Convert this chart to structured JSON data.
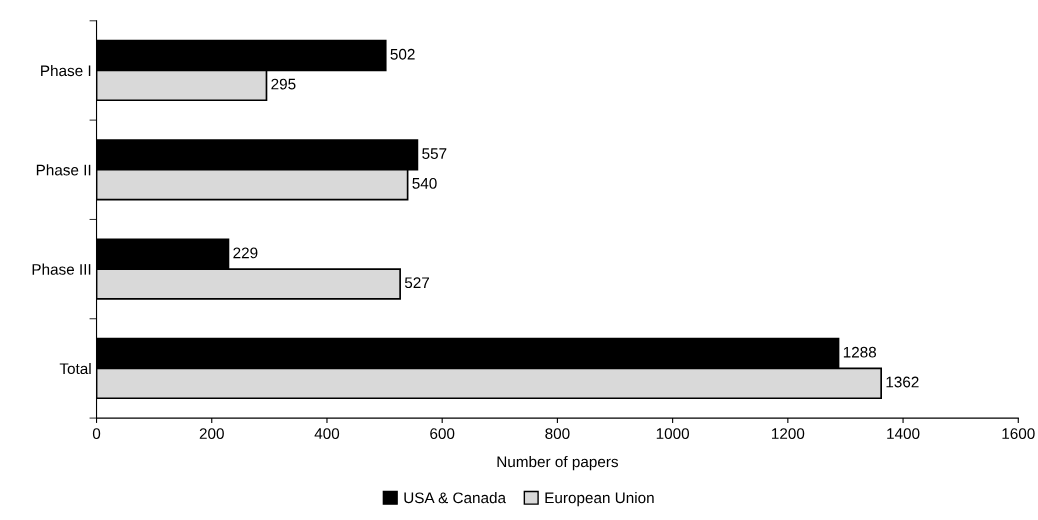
{
  "chart_data": {
    "type": "bar",
    "orientation": "horizontal",
    "categories": [
      "Phase I",
      "Phase II",
      "Phase III",
      "Total"
    ],
    "series": [
      {
        "name": "USA & Canada",
        "color": "#000000",
        "values": [
          502,
          557,
          229,
          1288
        ]
      },
      {
        "name": "European Union",
        "color": "#d9d9d9",
        "values": [
          295,
          540,
          527,
          1362
        ]
      }
    ],
    "xlabel": "Number of papers",
    "xlim": [
      0,
      1600
    ],
    "xticks": [
      0,
      200,
      400,
      600,
      800,
      1000,
      1200,
      1400,
      1600
    ],
    "data_labels": true,
    "grid": false,
    "legend": "bottom"
  }
}
